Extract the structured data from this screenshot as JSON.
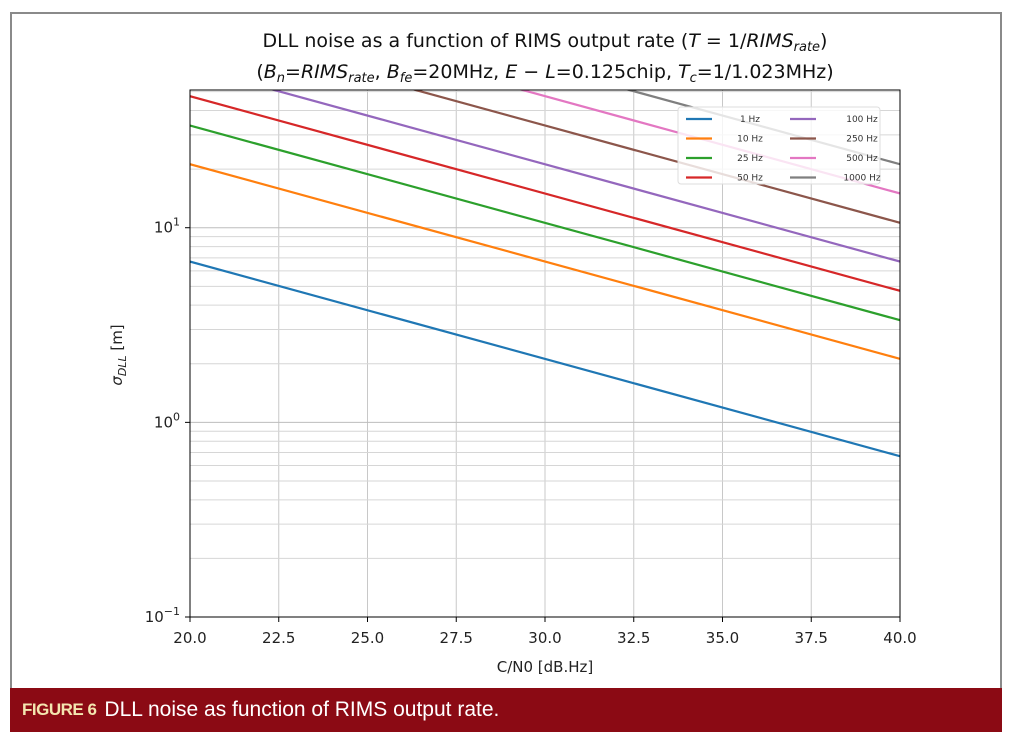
{
  "chart_data": {
    "type": "line",
    "title_lines": [
      [
        {
          "t": "DLL noise as a function of RIMS output rate ("
        },
        {
          "t": "T",
          "i": true
        },
        {
          "t": " = 1/"
        },
        {
          "t": "RIMS",
          "i": true
        },
        {
          "t": "rate",
          "i": true,
          "sub": true
        },
        {
          "t": ")"
        }
      ],
      [
        {
          "t": "("
        },
        {
          "t": "B",
          "i": true
        },
        {
          "t": "n",
          "i": true,
          "sub": true
        },
        {
          "t": "="
        },
        {
          "t": "RIMS",
          "i": true
        },
        {
          "t": "rate",
          "i": true,
          "sub": true
        },
        {
          "t": ", "
        },
        {
          "t": "B",
          "i": true
        },
        {
          "t": "fe",
          "i": true,
          "sub": true
        },
        {
          "t": "=20MHz, "
        },
        {
          "t": "E",
          "i": true
        },
        {
          "t": " − "
        },
        {
          "t": "L",
          "i": true
        },
        {
          "t": "=0.125chip, "
        },
        {
          "t": "T",
          "i": true
        },
        {
          "t": "c",
          "i": true,
          "sub": true
        },
        {
          "t": "=1/1.023MHz)"
        }
      ]
    ],
    "xlabel": "C/N0 [dB.Hz]",
    "ylabel": {
      "sym": "σ",
      "sub": "DLL",
      "unit": " [m]"
    },
    "xlim": [
      20,
      40
    ],
    "ylim": [
      0.1,
      51
    ],
    "yscale": "log",
    "grid": true,
    "xticks": [
      "20.0",
      "22.5",
      "25.0",
      "27.5",
      "30.0",
      "32.5",
      "35.0",
      "37.5",
      "40.0"
    ],
    "yticks": [
      {
        "base": "10",
        "exp": "−1",
        "v": 0.1
      },
      {
        "base": "10",
        "exp": "0",
        "v": 1
      },
      {
        "base": "10",
        "exp": "1",
        "v": 10
      }
    ],
    "legend_position": "top-right",
    "x": [
      20,
      40
    ],
    "series": [
      {
        "name": "1 Hz",
        "color": "#1f77b4",
        "values": [
          6.7,
          0.67
        ]
      },
      {
        "name": "10 Hz",
        "color": "#ff7f0e",
        "values": [
          21.2,
          2.12
        ]
      },
      {
        "name": "25 Hz",
        "color": "#2ca02c",
        "values": [
          33.5,
          3.35
        ]
      },
      {
        "name": "50 Hz",
        "color": "#d62728",
        "values": [
          47.4,
          4.74
        ]
      },
      {
        "name": "100 Hz",
        "color": "#9467bd",
        "values": [
          67,
          6.7
        ]
      },
      {
        "name": "250 Hz",
        "color": "#8c564b",
        "values": [
          106,
          10.6
        ]
      },
      {
        "name": "500 Hz",
        "color": "#e377c2",
        "values": [
          150,
          15.0
        ]
      },
      {
        "name": "1000 Hz",
        "color": "#7f7f7f",
        "values": [
          212,
          21.2
        ]
      }
    ]
  },
  "caption": {
    "label": "FIGURE 6",
    "text": "DLL noise as function of RIMS output rate."
  }
}
